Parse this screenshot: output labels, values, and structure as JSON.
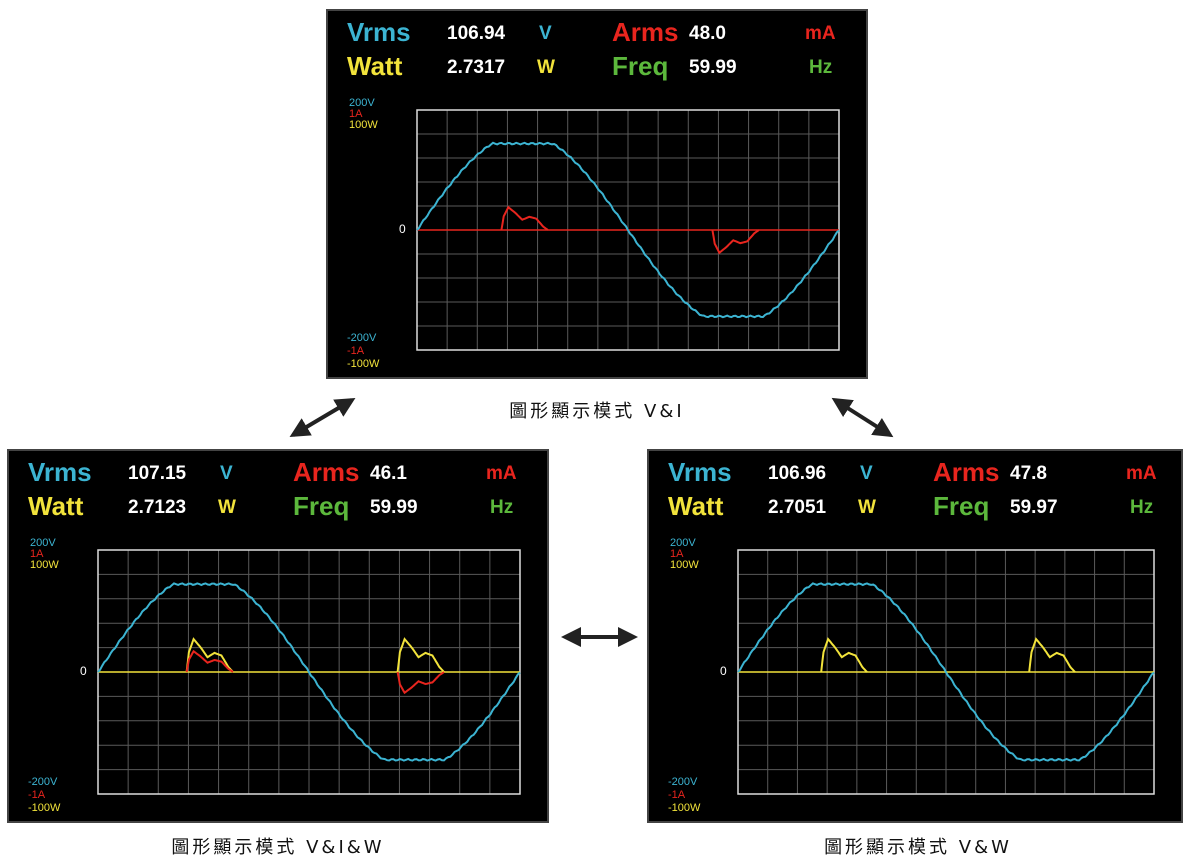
{
  "panels": [
    {
      "caption": "圖形顯示模式 V&I",
      "readings": {
        "vrms_label": "Vrms",
        "vrms": "106.94",
        "vrms_unit": "V",
        "arms_label": "Arms",
        "arms": "48.0",
        "arms_unit": "mA",
        "watt_label": "Watt",
        "watt": "2.7317",
        "watt_unit": "W",
        "freq_label": "Freq",
        "freq": "59.99",
        "freq_unit": "Hz"
      },
      "scale_top": [
        "200V",
        "1A",
        "100W"
      ],
      "zero": "0",
      "scale_bottom": [
        "-200V",
        "-1A",
        "-100W"
      ]
    },
    {
      "caption": "圖形顯示模式 V&I&W",
      "readings": {
        "vrms_label": "Vrms",
        "vrms": "107.15",
        "vrms_unit": "V",
        "arms_label": "Arms",
        "arms": "46.1",
        "arms_unit": "mA",
        "watt_label": "Watt",
        "watt": "2.7123",
        "watt_unit": "W",
        "freq_label": "Freq",
        "freq": "59.99",
        "freq_unit": "Hz"
      },
      "scale_top": [
        "200V",
        "1A",
        "100W"
      ],
      "zero": "0",
      "scale_bottom": [
        "-200V",
        "-1A",
        "-100W"
      ]
    },
    {
      "caption": "圖形顯示模式 V&W",
      "readings": {
        "vrms_label": "Vrms",
        "vrms": "106.96",
        "vrms_unit": "V",
        "arms_label": "Arms",
        "arms": "47.8",
        "arms_unit": "mA",
        "watt_label": "Watt",
        "watt": "2.7051",
        "watt_unit": "W",
        "freq_label": "Freq",
        "freq": "59.97",
        "freq_unit": "Hz"
      },
      "scale_top": [
        "200V",
        "1A",
        "100W"
      ],
      "zero": "0",
      "scale_bottom": [
        "-200V",
        "-1A",
        "-100W"
      ]
    }
  ]
}
